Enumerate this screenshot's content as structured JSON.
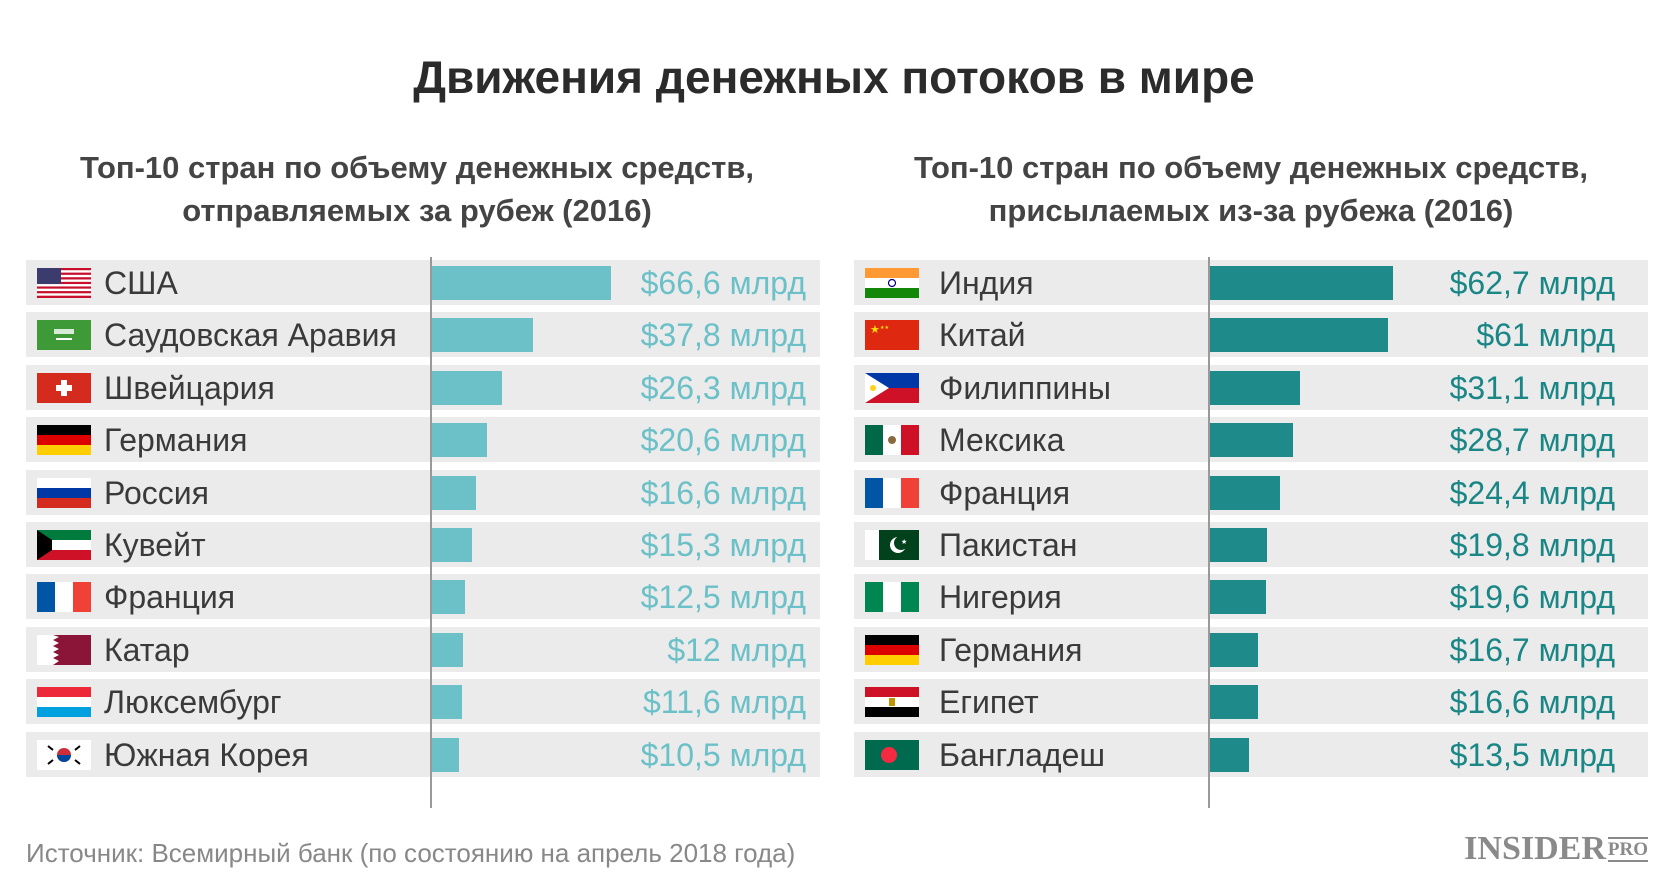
{
  "chart_data": [
    {
      "type": "bar",
      "orientation": "horizontal",
      "title": "Топ-10 стран по объему денежных средств, отправляемых за рубеж (2016)",
      "categories": [
        "США",
        "Саудовская Аравия",
        "Швейцария",
        "Германия",
        "Россия",
        "Кувейт",
        "Франция",
        "Катар",
        "Люксембург",
        "Южная Корея"
      ],
      "values": [
        66.6,
        37.8,
        26.3,
        20.6,
        16.6,
        15.3,
        12.5,
        12,
        11.6,
        10.5
      ],
      "labels": [
        "$66,6 млрд",
        "$37,8 млрд",
        "$26,3 млрд",
        "$20,6 млрд",
        "$16,6 млрд",
        "$15,3 млрд",
        "$12,5 млрд",
        "$12 млрд",
        "$11,6 млрд",
        "$10,5 млрд"
      ],
      "flags": [
        "us",
        "sa",
        "ch",
        "de",
        "ru",
        "kw",
        "fr",
        "qa",
        "lu",
        "kr"
      ],
      "color": "#6cc0c8"
    },
    {
      "type": "bar",
      "orientation": "horizontal",
      "title": "Топ-10 стран по объему денежных средств, присылаемых из-за рубежа (2016)",
      "categories": [
        "Индия",
        "Китай",
        "Филиппины",
        "Мексика",
        "Франция",
        "Пакистан",
        "Нигерия",
        "Германия",
        "Египет",
        "Бангладеш"
      ],
      "values": [
        62.7,
        61,
        31.1,
        28.7,
        24.4,
        19.8,
        19.6,
        16.7,
        16.6,
        13.5
      ],
      "labels": [
        "$62,7 млрд",
        "$61 млрд",
        "$31,1 млрд",
        "$28,7 млрд",
        "$24,4 млрд",
        "$19,8 млрд",
        "$19,6 млрд",
        "$16,7 млрд",
        "$16,6 млрд",
        "$13,5 млрд"
      ],
      "flags": [
        "in",
        "cn",
        "ph",
        "mx",
        "fr",
        "pk",
        "ng",
        "de",
        "eg",
        "bd"
      ],
      "color": "#1e8a8a"
    }
  ],
  "title": "Движения денежных потоков в мире",
  "subtitle_left": [
    "Топ-10 стран по объему денежных средств,",
    "отправляемых за рубеж (2016)"
  ],
  "subtitle_right": [
    "Топ-10 стран по объему денежных средств,",
    "присылаемых из-за рубежа (2016)"
  ],
  "source": "Источник: Всемирный банк (по состоянию на апрель 2018 года)",
  "logo": "INSIDER PRO"
}
